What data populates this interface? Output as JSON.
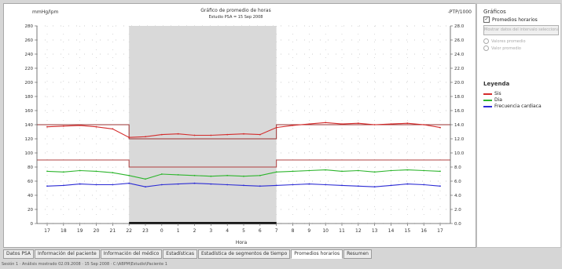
{
  "chart_header": {
    "left_label": "mmHg/lpm",
    "title": "Gráfico de promedio de horas",
    "subtitle": "Estudio PSA = 15 Sep 2008",
    "right_label": "-PTP/1000"
  },
  "sidebar": {
    "title": "Gráficos",
    "checkbox_label": "Promedios horarios",
    "button_label": "Mostrar datos del intervalo seleccionado",
    "radio_1": "Valores promedio",
    "radio_2": "Valor promedio",
    "legend_title": "Leyenda",
    "legend": [
      {
        "label": "Sis",
        "color": "#d42b2b"
      },
      {
        "label": "Dia",
        "color": "#2db52d"
      },
      {
        "label": "Frecuencia cardiaca",
        "color": "#2b2bd4"
      }
    ]
  },
  "tabs": [
    {
      "label": "Datos PSA",
      "active": false
    },
    {
      "label": "Información del paciente",
      "active": false
    },
    {
      "label": "Información del médico",
      "active": false
    },
    {
      "label": "Estadísticas",
      "active": false
    },
    {
      "label": "Estadística de segmentos de tiempo",
      "active": false
    },
    {
      "label": "Promedios horarios",
      "active": true
    },
    {
      "label": "Resumen",
      "active": false
    }
  ],
  "status_bar": "Sesión 1 · Análisis mostrado 02.09.2008 · 15 Sep 2008 · C:\\ABPM\\Estudio\\Paciente 1",
  "chart_data": {
    "type": "line",
    "x": [
      "17",
      "18",
      "19",
      "20",
      "21",
      "22",
      "23",
      "0",
      "1",
      "2",
      "3",
      "4",
      "5",
      "6",
      "7",
      "8",
      "9",
      "10",
      "11",
      "12",
      "13",
      "14",
      "15",
      "16",
      "17"
    ],
    "x_axis_label": "Hora",
    "ylim": [
      0,
      280
    ],
    "y_ticks": [
      0,
      20,
      40,
      60,
      80,
      100,
      120,
      140,
      160,
      180,
      200,
      220,
      240,
      260,
      280
    ],
    "y2_ticks": [
      "0.0",
      "2.0",
      "4.0",
      "6.0",
      "8.0",
      "10.0",
      "12.0",
      "14.0",
      "16.0",
      "18.0",
      "20.0",
      "22.0",
      "24.0",
      "26.0",
      "28.0"
    ],
    "night_period": {
      "start_index": 5,
      "end_index": 14
    },
    "series": [
      {
        "name": "Sis",
        "color": "#d42b2b",
        "values": [
          137,
          138,
          139,
          137,
          134,
          122,
          123,
          126,
          127,
          125,
          125,
          126,
          127,
          126,
          136,
          139,
          141,
          143,
          141,
          142,
          140,
          141,
          142,
          140,
          136
        ]
      },
      {
        "name": "Dia",
        "color": "#2db52d",
        "values": [
          74,
          73,
          75,
          74,
          72,
          68,
          63,
          70,
          69,
          68,
          67,
          68,
          67,
          68,
          73,
          74,
          75,
          76,
          74,
          75,
          73,
          75,
          76,
          75,
          74
        ]
      },
      {
        "name": "Frecuencia cardiaca",
        "color": "#2b2bd4",
        "values": [
          53,
          54,
          56,
          55,
          55,
          57,
          52,
          55,
          56,
          57,
          56,
          55,
          54,
          53,
          54,
          55,
          56,
          55,
          54,
          53,
          52,
          54,
          56,
          55,
          53
        ]
      }
    ],
    "threshold_lines": [
      {
        "name": "Sis",
        "day": 140,
        "night": 120,
        "color": "#9a3030"
      },
      {
        "name": "Dia",
        "day": 90,
        "night": 80,
        "color": "#b04040"
      }
    ]
  }
}
